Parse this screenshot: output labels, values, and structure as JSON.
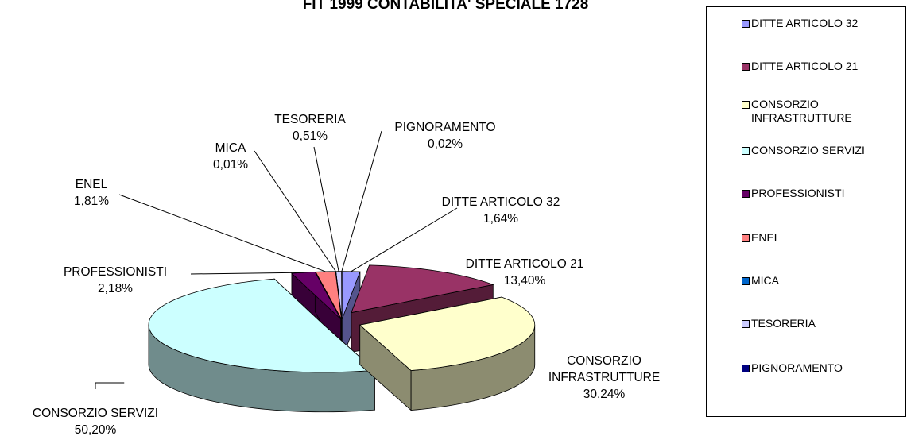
{
  "chart_data": {
    "type": "pie3d",
    "title": "FIT 1999 CONTABILITA' SPECIALE 1728",
    "categories": [
      "DITTE ARTICOLO 32",
      "DITTE ARTICOLO 21",
      "CONSORZIO INFRASTRUTTURE",
      "CONSORZIO SERVIZI",
      "PROFESSIONISTI",
      "ENEL",
      "MICA",
      "TESORERIA",
      "PIGNORAMENTO"
    ],
    "values": [
      1.64,
      13.4,
      30.24,
      50.2,
      2.18,
      1.81,
      0.01,
      0.51,
      0.02
    ],
    "value_labels": [
      "1,64%",
      "13,40%",
      "30,24%",
      "50,20%",
      "2,18%",
      "1,81%",
      "0,01%",
      "0,51%",
      "0,02%"
    ],
    "colors": [
      "#9999ff",
      "#993366",
      "#ffffcc",
      "#ccffff",
      "#660066",
      "#ff8080",
      "#0066cc",
      "#ccccff",
      "#000080"
    ],
    "legend": "right"
  }
}
